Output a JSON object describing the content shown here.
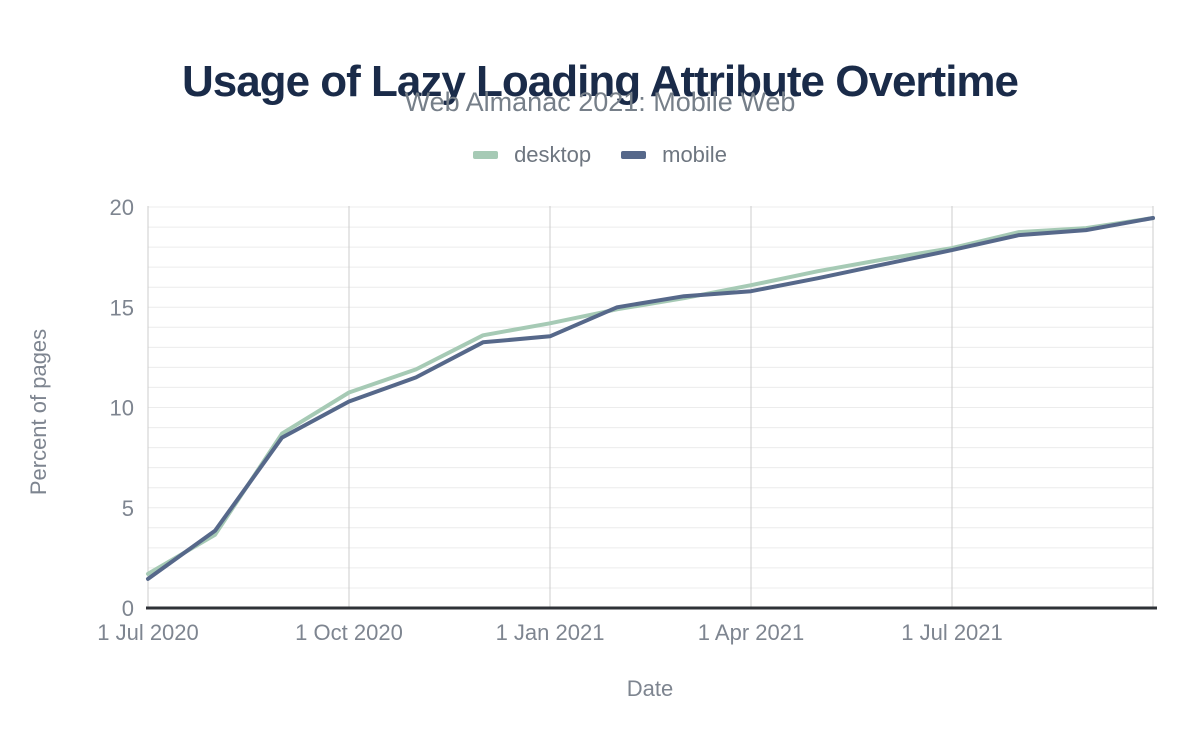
{
  "header": {
    "title": "Usage of Lazy Loading Attribute Overtime",
    "subtitle": "Web Almanac 2021: Mobile Web"
  },
  "legend": [
    {
      "label": "desktop",
      "color": "#a6cab5"
    },
    {
      "label": "mobile",
      "color": "#56688a"
    }
  ],
  "colors": {
    "title": "#1a2b49",
    "subtitle": "#767f89",
    "legend_text": "#6e7680",
    "axis_text": "#7e8590",
    "grid_minor": "#ececec",
    "grid_major": "#cccccc",
    "axis_line": "#2f3237",
    "background": "#ffffff"
  },
  "chart_data": {
    "type": "line",
    "title": "Usage of Lazy Loading Attribute Overtime",
    "subtitle": "Web Almanac 2021: Mobile Web",
    "xlabel": "Date",
    "ylabel": "Percent of pages",
    "x": [
      "1 Jul 2020",
      "1 Aug 2020",
      "1 Sep 2020",
      "1 Oct 2020",
      "1 Nov 2020",
      "1 Dec 2020",
      "1 Jan 2021",
      "1 Feb 2021",
      "1 Mar 2021",
      "1 Apr 2021",
      "1 May 2021",
      "1 Jun 2021",
      "1 Jul 2021",
      "1 Aug 2021",
      "1 Sep 2021",
      "1 Oct 2021"
    ],
    "series": [
      {
        "name": "desktop",
        "color": "#a6cab5",
        "values": [
          1.7,
          3.65,
          8.7,
          10.75,
          11.9,
          13.6,
          14.2,
          14.9,
          15.45,
          16.1,
          16.8,
          17.4,
          17.95,
          18.75,
          18.95,
          19.45
        ]
      },
      {
        "name": "mobile",
        "color": "#56688a",
        "values": [
          1.45,
          3.85,
          8.5,
          10.3,
          11.5,
          13.25,
          13.55,
          15.0,
          15.55,
          15.8,
          16.45,
          17.15,
          17.85,
          18.6,
          18.85,
          19.45
        ]
      }
    ],
    "ylim": [
      0,
      20
    ],
    "y_ticks": [
      0,
      5,
      10,
      15,
      20
    ],
    "y_minor_step": 1,
    "x_tick_labels": [
      "1 Jul 2020",
      "1 Oct 2020",
      "1 Jan 2021",
      "1 Apr 2021",
      "1 Jul 2021"
    ],
    "x_tick_indices": [
      0,
      3,
      6,
      9,
      12
    ],
    "x_gridline_indices": [
      3,
      6,
      9,
      12,
      15
    ],
    "grid": true,
    "legend_position": "top"
  }
}
